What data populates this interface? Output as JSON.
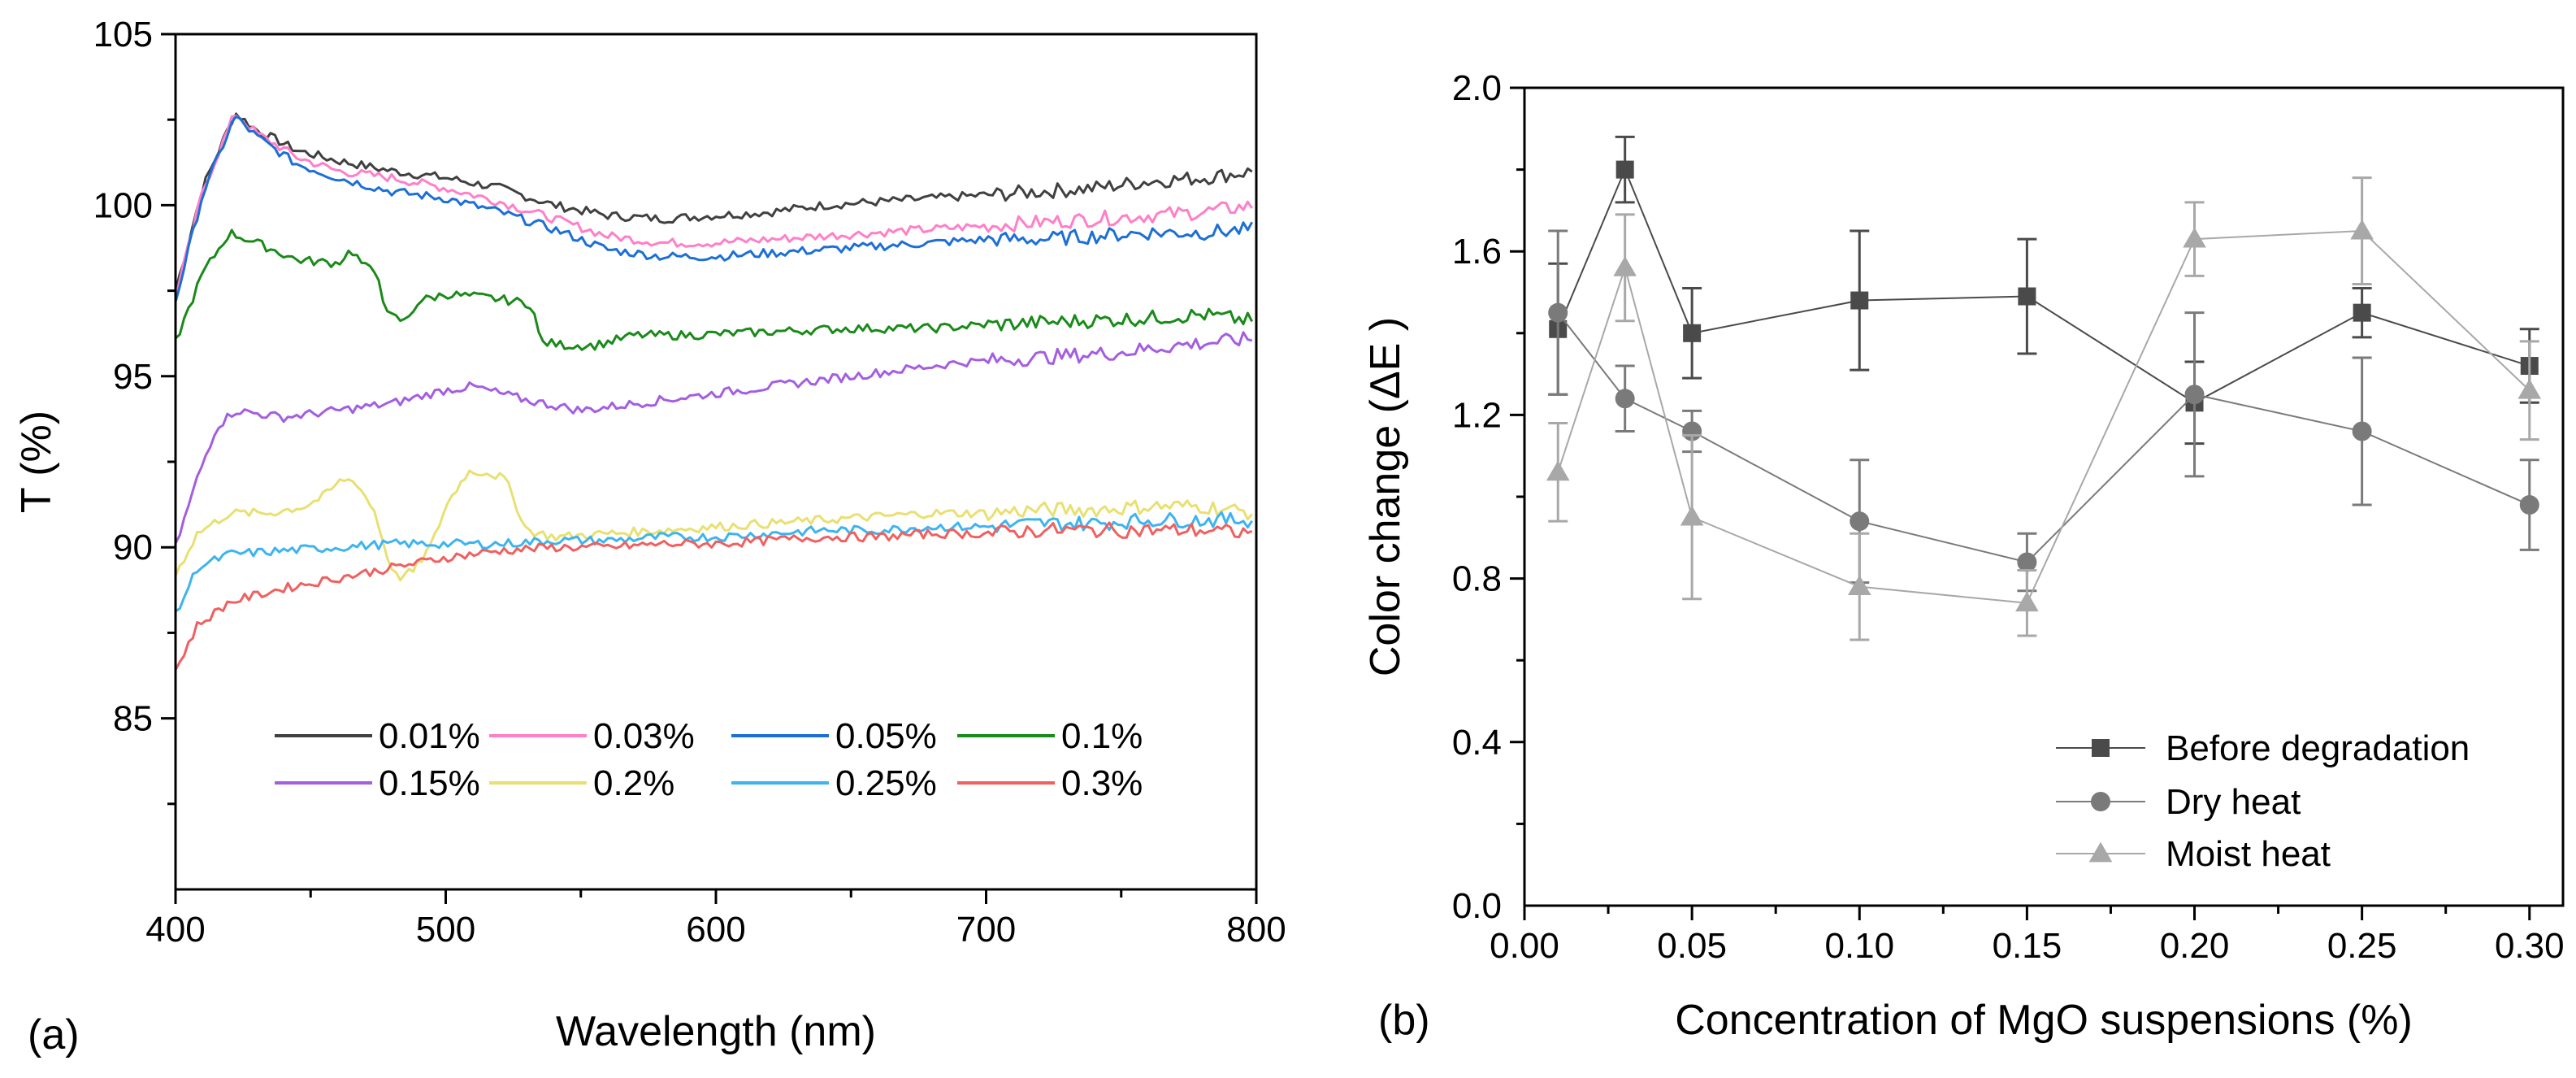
{
  "panels": {
    "a_label": "(a)",
    "b_label": "(b)"
  },
  "chart_data": [
    {
      "type": "line",
      "panel": "(a)",
      "xlabel": "Wavelength (nm)",
      "ylabel": "T (%)",
      "xlim": [
        400,
        800
      ],
      "ylim": [
        80,
        105
      ],
      "xticks": [
        400,
        500,
        600,
        700,
        800
      ],
      "yticks": [
        85,
        90,
        95,
        100,
        105
      ],
      "grid": false,
      "legend_position": "bottom-center",
      "series": [
        {
          "name": "0.01%",
          "color": "#404040",
          "points": [
            [
              400,
              97.5
            ],
            [
              410,
              100.5
            ],
            [
              422,
              102.7
            ],
            [
              430,
              102.2
            ],
            [
              445,
              101.6
            ],
            [
              460,
              101.3
            ],
            [
              480,
              101.0
            ],
            [
              500,
              100.8
            ],
            [
              520,
              100.5
            ],
            [
              540,
              100.0
            ],
            [
              560,
              99.7
            ],
            [
              580,
              99.6
            ],
            [
              600,
              99.7
            ],
            [
              620,
              99.8
            ],
            [
              640,
              100.0
            ],
            [
              660,
              100.1
            ],
            [
              680,
              100.2
            ],
            [
              700,
              100.3
            ],
            [
              720,
              100.4
            ],
            [
              740,
              100.5
            ],
            [
              760,
              100.7
            ],
            [
              780,
              100.8
            ],
            [
              800,
              101.0
            ]
          ]
        },
        {
          "name": "0.03%",
          "color": "#ff7fc8",
          "points": [
            [
              400,
              97.3
            ],
            [
              410,
              100.4
            ],
            [
              422,
              102.7
            ],
            [
              430,
              102.1
            ],
            [
              445,
              101.4
            ],
            [
              460,
              101.0
            ],
            [
              480,
              100.8
            ],
            [
              500,
              100.5
            ],
            [
              520,
              100.1
            ],
            [
              540,
              99.6
            ],
            [
              560,
              99.1
            ],
            [
              580,
              98.9
            ],
            [
              600,
              98.9
            ],
            [
              620,
              99.0
            ],
            [
              640,
              99.1
            ],
            [
              660,
              99.2
            ],
            [
              680,
              99.3
            ],
            [
              700,
              99.4
            ],
            [
              720,
              99.5
            ],
            [
              740,
              99.6
            ],
            [
              760,
              99.7
            ],
            [
              780,
              99.8
            ],
            [
              800,
              100.0
            ]
          ]
        },
        {
          "name": "0.05%",
          "color": "#1c6fd6",
          "points": [
            [
              400,
              97.2
            ],
            [
              410,
              100.3
            ],
            [
              422,
              102.6
            ],
            [
              430,
              102.0
            ],
            [
              445,
              101.2
            ],
            [
              460,
              100.8
            ],
            [
              480,
              100.4
            ],
            [
              500,
              100.2
            ],
            [
              520,
              99.8
            ],
            [
              540,
              99.3
            ],
            [
              560,
              98.7
            ],
            [
              580,
              98.5
            ],
            [
              600,
              98.5
            ],
            [
              620,
              98.6
            ],
            [
              640,
              98.7
            ],
            [
              660,
              98.8
            ],
            [
              680,
              98.9
            ],
            [
              700,
              99.0
            ],
            [
              720,
              99.0
            ],
            [
              740,
              99.1
            ],
            [
              760,
              99.2
            ],
            [
              780,
              99.2
            ],
            [
              800,
              99.3
            ]
          ]
        },
        {
          "name": "0.1%",
          "color": "#1a8a1a",
          "points": [
            [
              400,
              96.0
            ],
            [
              410,
              98.0
            ],
            [
              420,
              99.2
            ],
            [
              430,
              98.9
            ],
            [
              445,
              98.4
            ],
            [
              460,
              98.3
            ],
            [
              465,
              98.7
            ],
            [
              470,
              98.2
            ],
            [
              475,
              98.0
            ],
            [
              478,
              96.8
            ],
            [
              485,
              96.6
            ],
            [
              490,
              97.2
            ],
            [
              500,
              97.4
            ],
            [
              515,
              97.3
            ],
            [
              525,
              97.2
            ],
            [
              532,
              97.1
            ],
            [
              535,
              96.0
            ],
            [
              545,
              95.9
            ],
            [
              555,
              95.9
            ],
            [
              570,
              96.2
            ],
            [
              590,
              96.2
            ],
            [
              620,
              96.3
            ],
            [
              650,
              96.4
            ],
            [
              680,
              96.4
            ],
            [
              700,
              96.5
            ],
            [
              730,
              96.6
            ],
            [
              760,
              96.7
            ],
            [
              780,
              96.8
            ],
            [
              800,
              96.6
            ]
          ]
        },
        {
          "name": "0.15%",
          "color": "#a45ee0",
          "points": [
            [
              400,
              90.0
            ],
            [
              408,
              92.0
            ],
            [
              415,
              93.5
            ],
            [
              422,
              94.0
            ],
            [
              440,
              93.8
            ],
            [
              460,
              94.0
            ],
            [
              480,
              94.2
            ],
            [
              500,
              94.6
            ],
            [
              510,
              94.7
            ],
            [
              530,
              94.3
            ],
            [
              550,
              94.0
            ],
            [
              570,
              94.2
            ],
            [
              590,
              94.4
            ],
            [
              610,
              94.6
            ],
            [
              630,
              94.8
            ],
            [
              650,
              95.0
            ],
            [
              670,
              95.2
            ],
            [
              690,
              95.4
            ],
            [
              710,
              95.5
            ],
            [
              730,
              95.6
            ],
            [
              750,
              95.7
            ],
            [
              770,
              95.9
            ],
            [
              800,
              96.1
            ]
          ]
        },
        {
          "name": "0.2%",
          "color": "#e8e070",
          "points": [
            [
              400,
              89.2
            ],
            [
              408,
              90.4
            ],
            [
              420,
              91.0
            ],
            [
              435,
              91.0
            ],
            [
              448,
              91.2
            ],
            [
              455,
              91.5
            ],
            [
              462,
              92.0
            ],
            [
              467,
              91.9
            ],
            [
              474,
              91.0
            ],
            [
              478,
              89.8
            ],
            [
              482,
              89.1
            ],
            [
              488,
              89.3
            ],
            [
              495,
              90.1
            ],
            [
              500,
              91.2
            ],
            [
              508,
              92.2
            ],
            [
              515,
              92.2
            ],
            [
              522,
              92.0
            ],
            [
              530,
              90.5
            ],
            [
              540,
              90.3
            ],
            [
              560,
              90.4
            ],
            [
              580,
              90.5
            ],
            [
              600,
              90.6
            ],
            [
              620,
              90.7
            ],
            [
              640,
              90.8
            ],
            [
              660,
              90.9
            ],
            [
              680,
              91.0
            ],
            [
              700,
              91.0
            ],
            [
              720,
              91.1
            ],
            [
              740,
              91.1
            ],
            [
              760,
              91.2
            ],
            [
              780,
              91.2
            ],
            [
              800,
              91.0
            ]
          ]
        },
        {
          "name": "0.25%",
          "color": "#3db4f0",
          "points": [
            [
              400,
              88.0
            ],
            [
              408,
              89.4
            ],
            [
              420,
              89.8
            ],
            [
              440,
              89.9
            ],
            [
              460,
              90.0
            ],
            [
              480,
              90.1
            ],
            [
              500,
              90.1
            ],
            [
              520,
              90.1
            ],
            [
              540,
              90.2
            ],
            [
              560,
              90.2
            ],
            [
              580,
              90.3
            ],
            [
              600,
              90.3
            ],
            [
              620,
              90.4
            ],
            [
              640,
              90.5
            ],
            [
              660,
              90.5
            ],
            [
              680,
              90.6
            ],
            [
              700,
              90.6
            ],
            [
              720,
              90.7
            ],
            [
              740,
              90.7
            ],
            [
              760,
              90.8
            ],
            [
              780,
              90.8
            ],
            [
              800,
              90.8
            ]
          ]
        },
        {
          "name": "0.3%",
          "color": "#f06060",
          "points": [
            [
              400,
              86.4
            ],
            [
              408,
              87.7
            ],
            [
              420,
              88.4
            ],
            [
              440,
              88.8
            ],
            [
              460,
              89.1
            ],
            [
              480,
              89.4
            ],
            [
              500,
              89.7
            ],
            [
              520,
              89.9
            ],
            [
              540,
              90.0
            ],
            [
              560,
              90.0
            ],
            [
              580,
              90.1
            ],
            [
              600,
              90.1
            ],
            [
              620,
              90.2
            ],
            [
              640,
              90.3
            ],
            [
              660,
              90.3
            ],
            [
              680,
              90.4
            ],
            [
              700,
              90.4
            ],
            [
              720,
              90.5
            ],
            [
              740,
              90.5
            ],
            [
              760,
              90.5
            ],
            [
              780,
              90.5
            ],
            [
              800,
              90.4
            ]
          ]
        }
      ]
    },
    {
      "type": "line",
      "panel": "(b)",
      "xlabel": "Concentration of MgO suspensions (%)",
      "ylabel": "Color change (ΔE )",
      "xlim": [
        0.0,
        0.31
      ],
      "ylim": [
        0.0,
        2.0
      ],
      "xticks": [
        0.0,
        0.05,
        0.1,
        0.15,
        0.2,
        0.25,
        0.3
      ],
      "xtick_labels": [
        "0.00",
        "0.05",
        "0.10",
        "0.15",
        "0.20",
        "0.25",
        "0.30"
      ],
      "yticks": [
        0.0,
        0.4,
        0.8,
        1.2,
        1.6,
        2.0
      ],
      "ytick_labels": [
        "0.0",
        "0.4",
        "0.8",
        "1.2",
        "1.6",
        "2.0"
      ],
      "grid": false,
      "legend_position": "bottom-right",
      "x": [
        0.01,
        0.03,
        0.05,
        0.1,
        0.15,
        0.2,
        0.25,
        0.3
      ],
      "series": [
        {
          "name": "Before degradation",
          "marker": "square",
          "color": "#4a4a4a",
          "values": [
            1.41,
            1.8,
            1.4,
            1.48,
            1.49,
            1.23,
            1.45,
            1.32
          ],
          "errors": [
            0.16,
            0.08,
            0.11,
            0.17,
            0.14,
            0.1,
            0.06,
            0.09
          ]
        },
        {
          "name": "Dry heat",
          "marker": "circle",
          "color": "#7a7a7a",
          "values": [
            1.45,
            1.24,
            1.16,
            0.94,
            0.84,
            1.25,
            1.16,
            0.98
          ],
          "errors": [
            0.2,
            0.08,
            0.05,
            0.15,
            0.07,
            0.2,
            0.18,
            0.11
          ]
        },
        {
          "name": "Moist heat",
          "marker": "triangle",
          "color": "#a8a8a8",
          "values": [
            1.06,
            1.56,
            0.95,
            0.78,
            0.74,
            1.63,
            1.65,
            1.26
          ],
          "errors": [
            0.12,
            0.13,
            0.2,
            0.13,
            0.08,
            0.09,
            0.13,
            0.12
          ]
        }
      ]
    }
  ]
}
